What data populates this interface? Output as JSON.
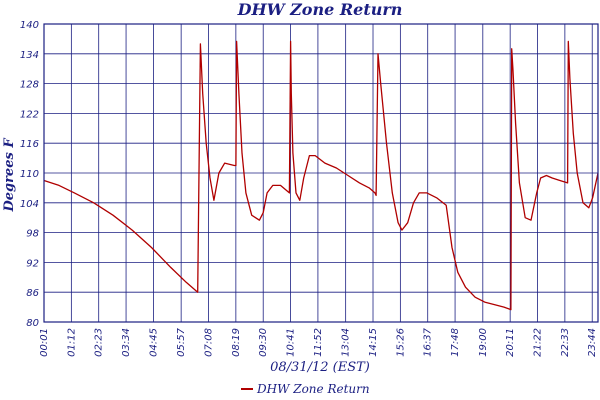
{
  "chart_data": {
    "type": "line",
    "title": "DHW Zone Return",
    "xlabel": "08/31/12 (EST)",
    "ylabel": "Degrees F",
    "ylim": [
      80,
      140
    ],
    "yticks": [
      "80",
      "86",
      "92",
      "98",
      "104",
      "110",
      "116",
      "122",
      "128",
      "134",
      "140"
    ],
    "xticks": [
      "00:01",
      "01:12",
      "02:23",
      "03:34",
      "04:45",
      "05:57",
      "07:08",
      "08:19",
      "09:30",
      "10:41",
      "11:52",
      "13:04",
      "14:15",
      "15:26",
      "16:37",
      "17:48",
      "19:00",
      "20:11",
      "21:22",
      "22:33",
      "23:44"
    ],
    "xlim": [
      "00:01",
      "23:59"
    ],
    "grid": true,
    "legend": "bottom-center",
    "colors": {
      "series": "#b00000",
      "grid": "#1b1f82",
      "text": "#1b1f82"
    },
    "series": [
      {
        "name": "DHW Zone Return",
        "x": [
          "00:01",
          "00:40",
          "01:20",
          "02:10",
          "03:00",
          "03:50",
          "04:40",
          "05:30",
          "06:10",
          "06:40",
          "06:42",
          "06:47",
          "06:53",
          "07:02",
          "07:12",
          "07:22",
          "07:35",
          "07:50",
          "08:15",
          "08:19",
          "08:21",
          "08:27",
          "08:35",
          "08:45",
          "09:00",
          "09:20",
          "09:30",
          "09:40",
          "09:55",
          "10:15",
          "10:38",
          "10:41",
          "10:43",
          "10:47",
          "10:55",
          "11:05",
          "11:15",
          "11:30",
          "11:45",
          "12:10",
          "12:40",
          "13:10",
          "13:40",
          "14:05",
          "14:20",
          "14:23",
          "14:28",
          "14:35",
          "14:50",
          "15:05",
          "15:20",
          "15:30",
          "15:45",
          "16:00",
          "16:15",
          "16:35",
          "17:00",
          "17:25",
          "17:40",
          "17:55",
          "18:15",
          "18:40",
          "19:05",
          "19:30",
          "19:55",
          "20:13",
          "20:15",
          "20:18",
          "20:25",
          "20:35",
          "20:50",
          "21:05",
          "21:20",
          "21:30",
          "21:45",
          "22:00",
          "22:20",
          "22:40",
          "22:42",
          "22:46",
          "22:55",
          "23:05",
          "23:20",
          "23:35",
          "23:45",
          "23:59"
        ],
        "values": [
          108.5,
          107.5,
          106,
          104,
          101.5,
          98.5,
          95,
          91,
          88,
          86,
          101,
          136,
          126,
          116,
          109,
          104.5,
          110,
          112,
          111.5,
          111.5,
          136.5,
          126,
          114,
          106,
          101.5,
          100.5,
          102,
          106,
          107.5,
          107.5,
          106,
          136.5,
          126,
          114,
          106,
          104.5,
          109,
          113.5,
          113.5,
          112,
          111,
          109.5,
          108,
          107,
          106,
          105.5,
          134,
          128,
          116,
          106,
          100,
          98.5,
          100,
          104,
          106,
          106,
          105,
          103.5,
          95,
          90,
          87,
          85,
          84,
          83.5,
          83,
          82.5,
          135,
          131,
          120,
          108,
          101,
          100.5,
          106,
          109,
          109.5,
          109,
          108.5,
          108,
          136.5,
          129,
          118,
          110,
          104,
          103,
          105,
          110
        ]
      }
    ]
  }
}
